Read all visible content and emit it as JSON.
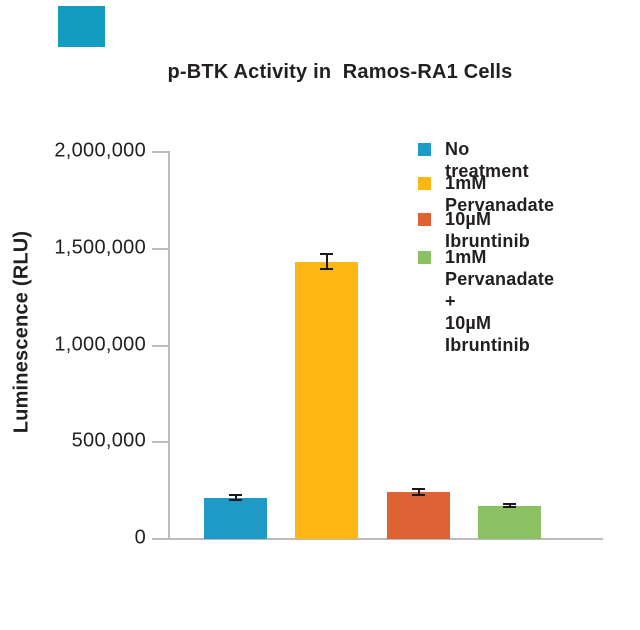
{
  "figure": {
    "brand_square_color": "#149cc0"
  },
  "chart_data": {
    "type": "bar",
    "title": "p-BTK Activity in  Ramos-RA1 Cells",
    "ylabel": "Luminescence (RLU)",
    "xlabel": "",
    "ylim": [
      0,
      2000000
    ],
    "grid": false,
    "legend_position": "upper right",
    "y_ticks": [
      {
        "label": "0",
        "value": 0
      },
      {
        "label": "500,000",
        "value": 500000
      },
      {
        "label": "1,000,000",
        "value": 1000000
      },
      {
        "label": "1,500,000",
        "value": 1500000
      },
      {
        "label": "2,000,000",
        "value": 2000000
      }
    ],
    "categories": [
      "No treatment",
      "1mM Pervanadate",
      "10µM Ibruntinib",
      "1mM Pervanadate + 10µM Ibruntinib"
    ],
    "values": [
      212000,
      1433000,
      244000,
      172000
    ],
    "errors": [
      13000,
      40000,
      15000,
      9000
    ],
    "bar_colors": [
      "#1e9ac6",
      "#fdb714",
      "#df6234",
      "#8bc162"
    ],
    "error_bar_color": "#1a1a1a",
    "axis_color": "#bbbbbb",
    "text_color": "#231f20"
  },
  "legend": {
    "items": [
      {
        "label": "No treatment",
        "color": "#1e9ac6"
      },
      {
        "label": "1mM Pervanadate",
        "color": "#fdb714"
      },
      {
        "label": "10µM Ibruntinib",
        "color": "#df6234"
      },
      {
        "label": "1mM Pervanadate +\n10µM Ibruntinib",
        "color": "#8bc162"
      }
    ]
  }
}
